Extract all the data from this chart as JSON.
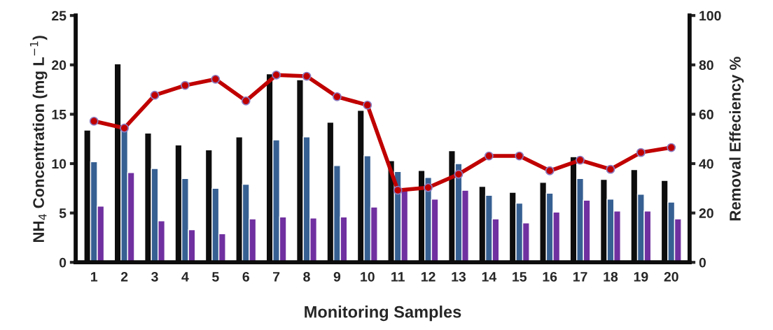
{
  "chart_data": {
    "type": "bar",
    "xlabel": "Monitoring Samples",
    "ylabel": "NH$_{4}$ Concentration (mg L$^{−1}$)",
    "y2label": "Removal Effeciency %",
    "categories": [
      "1",
      "2",
      "3",
      "4",
      "5",
      "6",
      "7",
      "8",
      "9",
      "10",
      "11",
      "12",
      "13",
      "14",
      "15",
      "16",
      "17",
      "18",
      "19",
      "20"
    ],
    "series": [
      {
        "color": "#0d0d0d",
        "values": [
          13.4,
          20.1,
          13.1,
          11.9,
          11.4,
          12.7,
          19.1,
          18.5,
          14.2,
          15.4,
          10.3,
          9.3,
          11.3,
          7.7,
          7.1,
          8.1,
          10.7,
          8.4,
          9.4,
          8.3
        ]
      },
      {
        "color": "#376092",
        "values": [
          10.2,
          13.3,
          9.5,
          8.5,
          7.5,
          7.9,
          12.4,
          12.7,
          9.8,
          10.8,
          9.2,
          8.6,
          10.0,
          6.8,
          6.0,
          7.0,
          8.5,
          6.4,
          6.9,
          6.1
        ]
      },
      {
        "color": "#7030a0",
        "values": [
          5.7,
          9.1,
          4.2,
          3.3,
          2.9,
          4.4,
          4.6,
          4.5,
          4.6,
          5.6,
          7.3,
          6.4,
          7.3,
          4.4,
          4.0,
          5.1,
          6.3,
          5.2,
          5.2,
          4.4
        ]
      },
      {
        "type": "line",
        "axis": "y2",
        "color": "#c00000",
        "marker": "circle",
        "line_style": "solid",
        "values": [
          57.2,
          54.4,
          67.7,
          71.7,
          74.2,
          65.4,
          75.9,
          75.4,
          67.1,
          63.7,
          29.2,
          30.3,
          35.7,
          43.1,
          43.1,
          37.1,
          41.4,
          37.7,
          44.5,
          46.5
        ]
      }
    ],
    "ylim": [
      0,
      25
    ],
    "yticks": [
      0,
      5,
      10,
      15,
      20,
      25
    ],
    "y2lim": [
      0,
      100
    ],
    "y2ticks": [
      0,
      20,
      40,
      60,
      80,
      100
    ],
    "grid": false,
    "legend": false
  }
}
